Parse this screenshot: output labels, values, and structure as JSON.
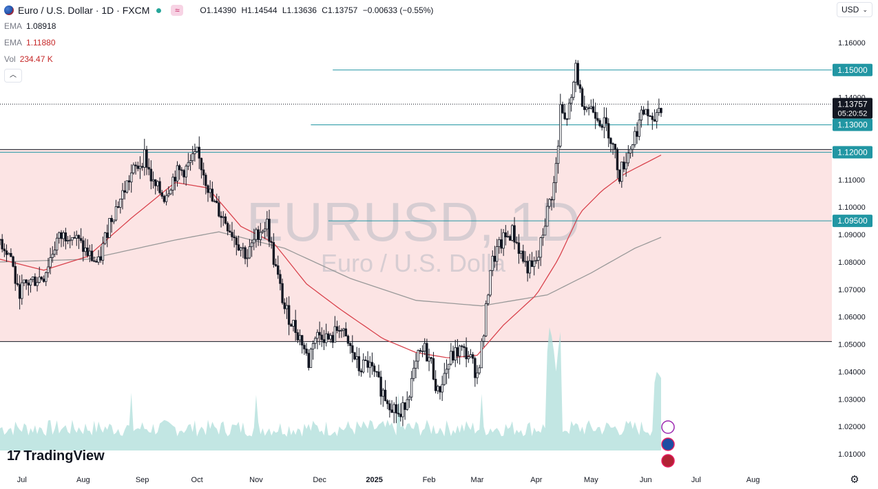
{
  "header": {
    "title": "Euro / U.S. Dollar · 1D · FXCM",
    "ohlc": [
      {
        "k": "O",
        "v": "1.14390"
      },
      {
        "k": "H",
        "v": "1.14544"
      },
      {
        "k": "L",
        "v": "1.13636"
      },
      {
        "k": "C",
        "v": "1.13757"
      },
      {
        "k": "",
        "v": "−0.00633 (−0.55%)"
      }
    ],
    "indicators": [
      {
        "label": "EMA",
        "value": "1.08918",
        "color": "#131722"
      },
      {
        "label": "EMA",
        "value": "1.11880",
        "color": "#c62828"
      },
      {
        "label": "Vol",
        "value": "234.47 K",
        "color": "#c62828"
      }
    ],
    "currency": "USD",
    "watermark_symbol": "EURUSD, 1D",
    "watermark_name": "Euro / U.S. Dolla"
  },
  "branding": {
    "logo_text": "TradingView"
  },
  "colors": {
    "up": "#131722",
    "down": "#131722",
    "ema_fast": "#d9434d",
    "ema_slow": "#999999",
    "hline": "#2196a3",
    "zone": "#fce4e4",
    "vol_up": "#a8dcd7",
    "vol_down": "#f8b6b6"
  },
  "chart_data": {
    "type": "candlestick",
    "symbol": "EURUSD",
    "timeframe": "1D",
    "ylim": [
      1.005,
      1.168
    ],
    "y_ticks": [
      "1.16000",
      "1.15000",
      "1.14000",
      "1.13000",
      "1.12000",
      "1.11000",
      "1.10000",
      "1.09000",
      "1.08000",
      "1.07000",
      "1.06000",
      "1.05000",
      "1.04000",
      "1.03000",
      "1.02000",
      "1.01000"
    ],
    "x_labels": [
      "Jul",
      "Aug",
      "Sep",
      "Oct",
      "Nov",
      "Dec",
      "2025",
      "Feb",
      "Mar",
      "Apr",
      "May",
      "Jun",
      "Jul",
      "Aug"
    ],
    "x_label_index": [
      10,
      38,
      65,
      90,
      117,
      146,
      171,
      196,
      218,
      245,
      270,
      295,
      318,
      344
    ],
    "total_days": 380,
    "last_price": {
      "value": 1.13757,
      "label": "1.13757",
      "countdown": "05:20:52"
    },
    "horizontal_lines": [
      {
        "value": 1.15,
        "label": "1.15000",
        "start_day": 152
      },
      {
        "value": 1.13,
        "label": "1.13000",
        "start_day": 142
      },
      {
        "value": 1.12,
        "label": "1.12000",
        "start_day": 0
      },
      {
        "value": 1.095,
        "label": "1.09500",
        "start_day": 150
      }
    ],
    "zone": {
      "top": 1.121,
      "bottom": 1.051
    },
    "anchors": [
      [
        0,
        1.088
      ],
      [
        5,
        1.082
      ],
      [
        8,
        1.069
      ],
      [
        14,
        1.073
      ],
      [
        20,
        1.075
      ],
      [
        26,
        1.088
      ],
      [
        32,
        1.091
      ],
      [
        40,
        1.083
      ],
      [
        45,
        1.079
      ],
      [
        50,
        1.095
      ],
      [
        55,
        1.103
      ],
      [
        60,
        1.112
      ],
      [
        64,
        1.116
      ],
      [
        66,
        1.119
      ],
      [
        70,
        1.108
      ],
      [
        75,
        1.104
      ],
      [
        80,
        1.112
      ],
      [
        85,
        1.114
      ],
      [
        90,
        1.119
      ],
      [
        93,
        1.113
      ],
      [
        97,
        1.102
      ],
      [
        103,
        1.095
      ],
      [
        108,
        1.088
      ],
      [
        113,
        1.082
      ],
      [
        118,
        1.091
      ],
      [
        122,
        1.094
      ],
      [
        125,
        1.081
      ],
      [
        130,
        1.063
      ],
      [
        134,
        1.057
      ],
      [
        138,
        1.051
      ],
      [
        141,
        1.043
      ],
      [
        143,
        1.052
      ],
      [
        147,
        1.054
      ],
      [
        151,
        1.051
      ],
      [
        155,
        1.057
      ],
      [
        158,
        1.051
      ],
      [
        161,
        1.047
      ],
      [
        164,
        1.041
      ],
      [
        168,
        1.043
      ],
      [
        172,
        1.037
      ],
      [
        176,
        1.031
      ],
      [
        180,
        1.027
      ],
      [
        183,
        1.023
      ],
      [
        185,
        1.029
      ],
      [
        188,
        1.036
      ],
      [
        191,
        1.045
      ],
      [
        194,
        1.048
      ],
      [
        197,
        1.043
      ],
      [
        200,
        1.032
      ],
      [
        203,
        1.039
      ],
      [
        206,
        1.045
      ],
      [
        210,
        1.048
      ],
      [
        214,
        1.046
      ],
      [
        218,
        1.039
      ],
      [
        221,
        1.054
      ],
      [
        224,
        1.078
      ],
      [
        227,
        1.084
      ],
      [
        230,
        1.088
      ],
      [
        234,
        1.091
      ],
      [
        237,
        1.085
      ],
      [
        240,
        1.079
      ],
      [
        243,
        1.077
      ],
      [
        246,
        1.082
      ],
      [
        249,
        1.095
      ],
      [
        251,
        1.102
      ],
      [
        253,
        1.108
      ],
      [
        255,
        1.122
      ],
      [
        256,
        1.136
      ],
      [
        258,
        1.131
      ],
      [
        261,
        1.138
      ],
      [
        263,
        1.152
      ],
      [
        265,
        1.141
      ],
      [
        268,
        1.137
      ],
      [
        272,
        1.135
      ],
      [
        275,
        1.131
      ],
      [
        278,
        1.128
      ],
      [
        281,
        1.119
      ],
      [
        283,
        1.112
      ],
      [
        286,
        1.118
      ],
      [
        289,
        1.124
      ],
      [
        292,
        1.131
      ],
      [
        295,
        1.136
      ],
      [
        298,
        1.129
      ],
      [
        300,
        1.135
      ],
      [
        302,
        1.137
      ]
    ],
    "series": [
      {
        "name": "EMA",
        "label": "1.08918",
        "anchors": [
          [
            0,
            1.08
          ],
          [
            40,
            1.081
          ],
          [
            80,
            1.088
          ],
          [
            100,
            1.091
          ],
          [
            130,
            1.085
          ],
          [
            160,
            1.074
          ],
          [
            190,
            1.066
          ],
          [
            220,
            1.064
          ],
          [
            250,
            1.068
          ],
          [
            270,
            1.076
          ],
          [
            290,
            1.085
          ],
          [
            302,
            1.089
          ]
        ]
      },
      {
        "name": "EMA",
        "label": "1.11880",
        "anchors": [
          [
            0,
            1.081
          ],
          [
            20,
            1.077
          ],
          [
            40,
            1.082
          ],
          [
            60,
            1.096
          ],
          [
            80,
            1.109
          ],
          [
            95,
            1.107
          ],
          [
            110,
            1.093
          ],
          [
            125,
            1.087
          ],
          [
            140,
            1.072
          ],
          [
            155,
            1.063
          ],
          [
            175,
            1.052
          ],
          [
            190,
            1.047
          ],
          [
            205,
            1.045
          ],
          [
            218,
            1.046
          ],
          [
            230,
            1.057
          ],
          [
            245,
            1.068
          ],
          [
            255,
            1.081
          ],
          [
            265,
            1.098
          ],
          [
            275,
            1.106
          ],
          [
            285,
            1.112
          ],
          [
            302,
            1.119
          ]
        ]
      }
    ]
  }
}
